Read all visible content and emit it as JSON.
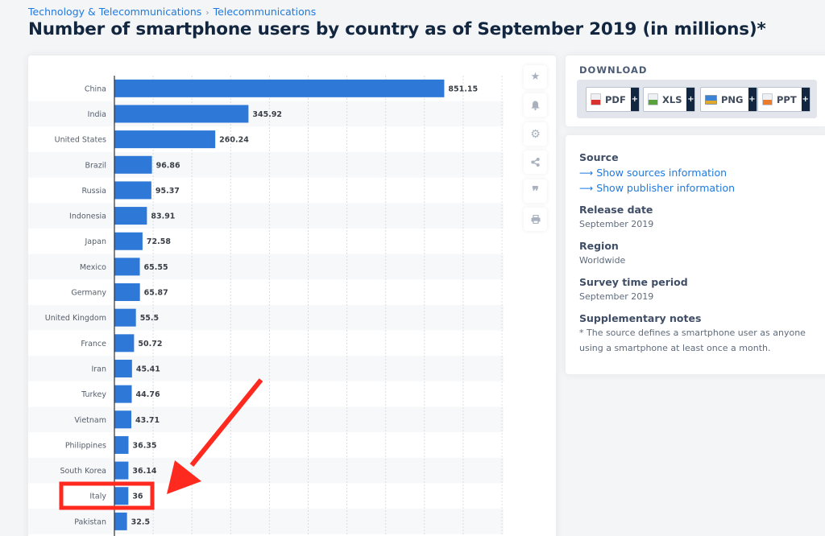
{
  "breadcrumb": {
    "items": [
      "Technology & Telecommunications",
      "Telecommunications"
    ],
    "separator": "›"
  },
  "page_title": "Number of smartphone users by country as of September 2019 (in millions)*",
  "toolbar": {
    "icons": [
      "star-icon",
      "bell-icon",
      "gear-icon",
      "share-icon",
      "quote-icon",
      "print-icon"
    ]
  },
  "download": {
    "title": "DOWNLOAD",
    "buttons": [
      {
        "label": "PDF",
        "plus": "+",
        "color": "#d9322e"
      },
      {
        "label": "XLS",
        "plus": "+",
        "color": "#5aa33a"
      },
      {
        "label": "PNG",
        "plus": "+",
        "color": "#e1a92b"
      },
      {
        "label": "PPT",
        "plus": "+",
        "color": "#ec7c2c"
      }
    ]
  },
  "info": {
    "source_label": "Source",
    "source_link": "Show sources information",
    "publisher_link": "Show publisher information",
    "release_label": "Release date",
    "release_value": "September 2019",
    "region_label": "Region",
    "region_value": "Worldwide",
    "survey_label": "Survey time period",
    "survey_value": "September 2019",
    "notes_label": "Supplementary notes",
    "notes_value": "* The source defines a smartphone user as anyone using a smartphone at least once a month."
  },
  "colors": {
    "bar": "#2e78d8",
    "accent": "#1f7ae0",
    "annotation": "#ff2a1f",
    "title": "#12263f"
  },
  "annotation": {
    "highlighted_category": "Italy",
    "type": "red box and arrow"
  },
  "chart_data": {
    "type": "bar",
    "orientation": "horizontal",
    "title": "Number of smartphone users by country as of September 2019 (in millions)*",
    "xlabel": "",
    "ylabel": "",
    "xlim": [
      0,
      1000
    ],
    "grid": true,
    "gridline_step": 100,
    "categories": [
      "China",
      "India",
      "United States",
      "Brazil",
      "Russia",
      "Indonesia",
      "Japan",
      "Mexico",
      "Germany",
      "United Kingdom",
      "France",
      "Iran",
      "Turkey",
      "Vietnam",
      "Philippines",
      "South Korea",
      "Italy",
      "Pakistan"
    ],
    "values": [
      851.15,
      345.92,
      260.24,
      96.86,
      95.37,
      83.91,
      72.58,
      65.55,
      65.87,
      55.5,
      50.72,
      45.41,
      44.76,
      43.71,
      36.35,
      36.14,
      36,
      32.5
    ],
    "value_labels": [
      "851.15",
      "345.92",
      "260.24",
      "96.86",
      "95.37",
      "83.91",
      "72.58",
      "65.55",
      "65.87",
      "55.5",
      "50.72",
      "45.41",
      "44.76",
      "43.71",
      "36.35",
      "36.14",
      "36",
      "32.5"
    ],
    "unit": "millions"
  }
}
